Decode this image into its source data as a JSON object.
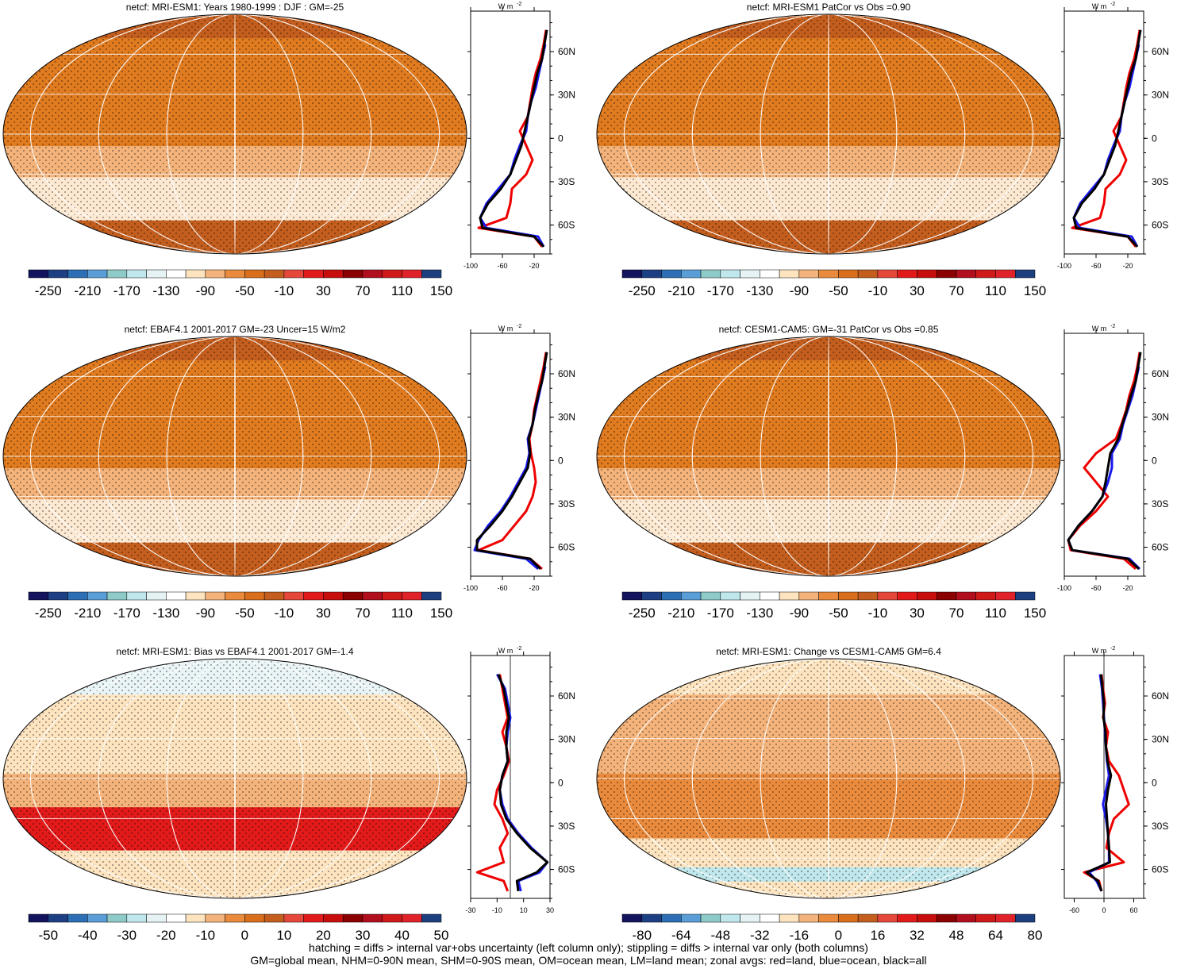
{
  "footer": {
    "line1": "hatching = diffs > internal var+obs uncertainty (left column only); stippling = diffs > internal var only (both columns)",
    "line2": "GM=global mean, NHM=0-90N mean, SHM=0-90S mean, OM=ocean mean, LM=land mean; zonal avgs: red=land, blue=ocean, black=all"
  },
  "colors": {
    "land": "#ee0000",
    "ocean": "#1a1aee",
    "all": "#000000",
    "palette_full": [
      "#13135e",
      "#1d3f84",
      "#2c6fb5",
      "#5a9ed8",
      "#8ecbc8",
      "#bfe7ec",
      "#e6f3f4",
      "#ffffff",
      "#fde4bf",
      "#f4b37a",
      "#e98a3c",
      "#d96f1c",
      "#c45e1e",
      "#e5473b",
      "#e31a1a",
      "#c80d0d",
      "#8b0000",
      "#b10e1e",
      "#d01919",
      "#e0232b",
      "#1c3f80"
    ],
    "palette_diff": [
      "#13135e",
      "#1d3f84",
      "#2c6fb5",
      "#5a9ed8",
      "#8ecbc8",
      "#bfe7ec",
      "#e6f3f4",
      "#ffffff",
      "#fde4bf",
      "#f4b37a",
      "#e98a3c",
      "#d96f1c",
      "#c45e1e",
      "#e5473b",
      "#e31a1a",
      "#c80d0d",
      "#8b0000",
      "#b10e1e",
      "#d01919",
      "#e0232b",
      "#1c3f80"
    ]
  },
  "chart_data": [
    {
      "type": "heatmap",
      "title": "netcf: MRI-ESM1: Years 1980-1999 : DJF : GM=-25",
      "colorbar_labels": [
        "-250",
        "-210",
        "-170",
        "-130",
        "-90",
        "-50",
        "-10",
        "30",
        "70",
        "110",
        "150"
      ],
      "zonal": {
        "unit_label": "W m",
        "unit_sup": "-2",
        "lat_ticks": [
          "60N",
          "30N",
          "0",
          "30S",
          "60S"
        ],
        "xticks": [
          "-100",
          "-60",
          "-20"
        ],
        "xlim": [
          -100,
          0
        ],
        "lat": [
          75,
          65,
          55,
          45,
          35,
          25,
          15,
          5,
          -5,
          -15,
          -25,
          -35,
          -45,
          -55,
          -62,
          -68,
          -75
        ],
        "land": [
          -5,
          -8,
          -12,
          -18,
          -22,
          -25,
          -28,
          -38,
          -30,
          -22,
          -30,
          -48,
          -50,
          -55,
          -90,
          -20,
          -10
        ],
        "ocean": [
          null,
          -6,
          -10,
          -14,
          -18,
          -24,
          -28,
          -30,
          -38,
          -45,
          -50,
          -65,
          -80,
          -88,
          -80,
          -15,
          -8
        ],
        "all": [
          -4,
          -7,
          -10,
          -16,
          -20,
          -24,
          -28,
          -32,
          -36,
          -43,
          -50,
          -62,
          -78,
          -88,
          -85,
          -20,
          -8
        ]
      }
    },
    {
      "type": "heatmap",
      "title": "netcf: MRI-ESM1 PatCor vs Obs =0.90",
      "colorbar_labels": [
        "-250",
        "-210",
        "-170",
        "-130",
        "-90",
        "-50",
        "-10",
        "30",
        "70",
        "110",
        "150"
      ],
      "zonal": {
        "unit_label": "W m",
        "unit_sup": "-2",
        "lat_ticks": [
          "60N",
          "30N",
          "0",
          "30S",
          "60S"
        ],
        "xticks": [
          "-100",
          "-60",
          "-20"
        ],
        "xlim": [
          -100,
          0
        ],
        "lat": [
          75,
          65,
          55,
          45,
          35,
          25,
          15,
          5,
          -5,
          -15,
          -25,
          -35,
          -45,
          -55,
          -62,
          -68,
          -75
        ],
        "land": [
          -5,
          -8,
          -12,
          -18,
          -22,
          -25,
          -28,
          -38,
          -30,
          -22,
          -30,
          -48,
          -50,
          -55,
          -90,
          -20,
          -10
        ],
        "ocean": [
          null,
          -6,
          -10,
          -14,
          -18,
          -24,
          -28,
          -30,
          -38,
          -45,
          -50,
          -65,
          -80,
          -88,
          -80,
          -15,
          -8
        ],
        "all": [
          -4,
          -7,
          -10,
          -16,
          -20,
          -24,
          -28,
          -32,
          -36,
          -43,
          -50,
          -62,
          -78,
          -88,
          -85,
          -20,
          -8
        ]
      }
    },
    {
      "type": "heatmap",
      "title": "netcf: EBAF4.1 2001-2017 GM=-23 Uncer=15 W/m2",
      "colorbar_labels": [
        "-250",
        "-210",
        "-170",
        "-130",
        "-90",
        "-50",
        "-10",
        "30",
        "70",
        "110",
        "150"
      ],
      "zonal": {
        "unit_label": "W m",
        "unit_sup": "-2",
        "lat_ticks": [
          "60N",
          "30N",
          "0",
          "30S",
          "60S"
        ],
        "xticks": [
          "-100",
          "-60",
          "-20"
        ],
        "xlim": [
          -100,
          0
        ],
        "lat": [
          75,
          65,
          55,
          45,
          35,
          25,
          15,
          5,
          -5,
          -15,
          -25,
          -35,
          -45,
          -55,
          -62,
          -68,
          -75
        ],
        "land": [
          -5,
          -8,
          -12,
          -16,
          -20,
          -22,
          -26,
          -24,
          -20,
          -18,
          -22,
          -30,
          -45,
          -60,
          -90,
          -25,
          -10
        ],
        "ocean": [
          null,
          -6,
          -10,
          -14,
          -18,
          -22,
          -28,
          -26,
          -30,
          -40,
          -50,
          -62,
          -78,
          -90,
          -95,
          -30,
          -15
        ],
        "all": [
          -4,
          -7,
          -10,
          -15,
          -19,
          -22,
          -27,
          -25,
          -28,
          -38,
          -48,
          -60,
          -75,
          -92,
          -92,
          -25,
          -12
        ]
      }
    },
    {
      "type": "heatmap",
      "title": "netcf: CESM1-CAM5: GM=-31 PatCor vs Obs =0.85",
      "colorbar_labels": [
        "-250",
        "-210",
        "-170",
        "-130",
        "-90",
        "-50",
        "-10",
        "30",
        "70",
        "110",
        "150"
      ],
      "zonal": {
        "unit_label": "W m",
        "unit_sup": "-2",
        "lat_ticks": [
          "60N",
          "30N",
          "0",
          "30S",
          "60S"
        ],
        "xticks": [
          "-100",
          "-60",
          "-20"
        ],
        "xlim": [
          -100,
          0
        ],
        "lat": [
          75,
          65,
          55,
          45,
          35,
          25,
          15,
          5,
          -5,
          -15,
          -25,
          -35,
          -45,
          -55,
          -62,
          -68,
          -75
        ],
        "land": [
          -5,
          -8,
          -12,
          -18,
          -22,
          -28,
          -35,
          -60,
          -75,
          -60,
          -45,
          -60,
          -80,
          -95,
          -92,
          -25,
          -10
        ],
        "ocean": [
          null,
          -6,
          -10,
          -14,
          -20,
          -26,
          -30,
          -40,
          -40,
          -45,
          -52,
          -65,
          -82,
          -95,
          -90,
          -18,
          -5
        ],
        "all": [
          -4,
          -7,
          -10,
          -16,
          -21,
          -27,
          -32,
          -42,
          -45,
          -48,
          -52,
          -65,
          -82,
          -95,
          -90,
          -20,
          -6
        ]
      }
    },
    {
      "type": "heatmap",
      "title": "netcf: MRI-ESM1: Bias vs EBAF4.1 2001-2017 GM=-1.4",
      "colorbar_labels": [
        "-50",
        "-40",
        "-30",
        "-20",
        "-10",
        "0",
        "10",
        "20",
        "30",
        "40",
        "50"
      ],
      "zonal": {
        "unit_label": "W m",
        "unit_sup": "-2",
        "lat_ticks": [
          "60N",
          "30N",
          "0",
          "30S",
          "60S"
        ],
        "xticks": [
          "-30",
          "-10",
          "10",
          "30"
        ],
        "xlim": [
          -30,
          30
        ],
        "lat": [
          75,
          65,
          55,
          45,
          35,
          25,
          15,
          5,
          -5,
          -15,
          -25,
          -35,
          -45,
          -55,
          -62,
          -68,
          -75
        ],
        "land": [
          -8,
          -6,
          -4,
          -2,
          -6,
          -3,
          -1,
          -5,
          -10,
          -12,
          -6,
          -2,
          -8,
          -5,
          -25,
          -5,
          -2
        ],
        "ocean": [
          -10,
          -4,
          -2,
          0,
          -2,
          -3,
          -2,
          -6,
          -8,
          -6,
          -2,
          6,
          16,
          28,
          22,
          6,
          8
        ],
        "all": [
          -9,
          -5,
          -3,
          -1,
          -3,
          -3,
          -2,
          -6,
          -8,
          -7,
          -3,
          5,
          15,
          28,
          20,
          5,
          6
        ]
      }
    },
    {
      "type": "heatmap",
      "title": "netcf: MRI-ESM1: Change vs CESM1-CAM5 GM=6.4",
      "colorbar_labels": [
        "-80",
        "-64",
        "-48",
        "-32",
        "-16",
        "0",
        "16",
        "32",
        "48",
        "64",
        "80"
      ],
      "zonal": {
        "unit_label": "W m",
        "unit_sup": "-2",
        "lat_ticks": [
          "60N",
          "30N",
          "0",
          "30S",
          "60S"
        ],
        "xticks": [
          "-60",
          "0",
          "60"
        ],
        "xlim": [
          -80,
          80
        ],
        "lat": [
          75,
          65,
          55,
          45,
          35,
          25,
          15,
          5,
          -5,
          -15,
          -25,
          -35,
          -45,
          -55,
          -62,
          -68,
          -75
        ],
        "land": [
          -5,
          -2,
          2,
          -2,
          8,
          4,
          10,
          30,
          40,
          50,
          20,
          10,
          5,
          40,
          -40,
          -10,
          -5
        ],
        "ocean": [
          -8,
          -4,
          -2,
          0,
          2,
          4,
          6,
          10,
          4,
          -2,
          4,
          8,
          10,
          10,
          -30,
          -15,
          -5
        ],
        "all": [
          -6,
          -3,
          0,
          -1,
          3,
          4,
          7,
          14,
          8,
          4,
          6,
          8,
          10,
          12,
          -35,
          -12,
          -5
        ]
      }
    }
  ]
}
